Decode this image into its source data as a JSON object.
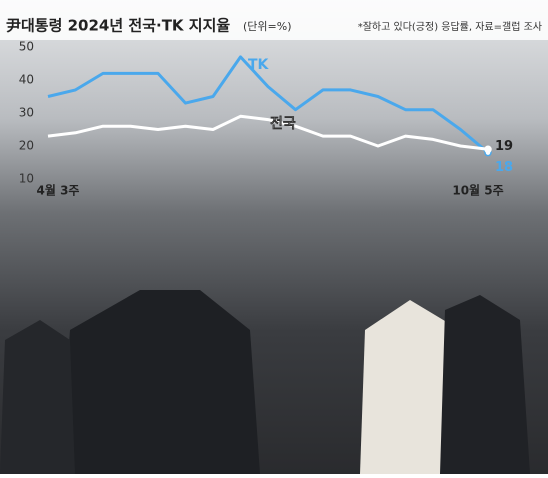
{
  "chart_data": {
    "type": "line",
    "title": "尹대통령 2024년 전국·TK 지지율",
    "subtitle": "(단위=%)",
    "source": "*잘하고 있다(긍정) 응답률, 자료=갤럽 조사",
    "categories": [
      "4월 3주",
      null,
      null,
      null,
      null,
      null,
      null,
      null,
      null,
      null,
      null,
      null,
      null,
      null,
      null,
      null,
      "10월 5주"
    ],
    "series": [
      {
        "name": "TK",
        "color": "#4aa8ec",
        "values": [
          35,
          37,
          42,
          42,
          42,
          33,
          35,
          47,
          38,
          31,
          37,
          37,
          35,
          31,
          31,
          25,
          18
        ]
      },
      {
        "name": "전국",
        "color": "#ffffff",
        "values": [
          23,
          24,
          26,
          26,
          25,
          26,
          25,
          29,
          28,
          26,
          23,
          23,
          20,
          23,
          22,
          20,
          19
        ]
      }
    ],
    "ylim": [
      10,
      50
    ],
    "yticks": [
      10,
      20,
      30,
      40,
      50
    ],
    "grid": false
  }
}
